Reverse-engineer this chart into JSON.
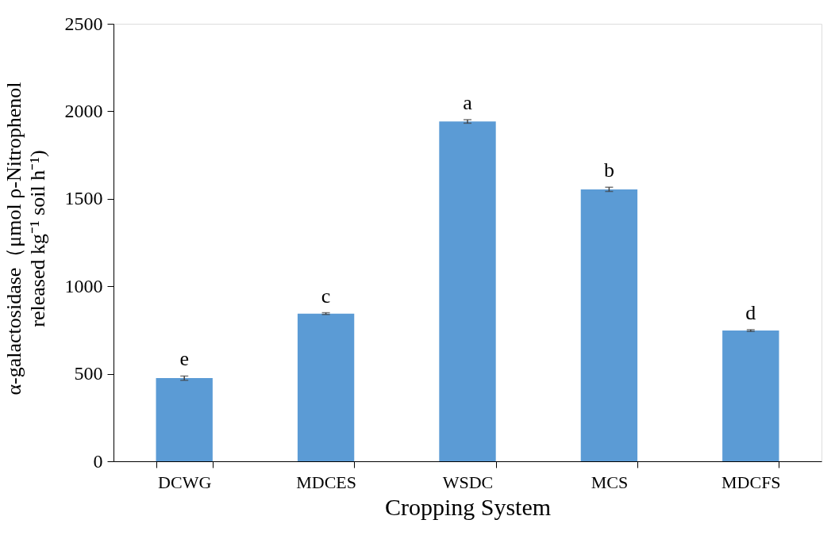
{
  "chart_data": {
    "type": "bar",
    "xlabel": "Cropping System",
    "ylabel": "α-galactosidase（μmol  ρ-Nitrophenol\nreleased kg⁻¹ soil h⁻¹)",
    "categories": [
      "DCWG",
      "MDCES",
      "WSDC",
      "MCS",
      "MDCFS"
    ],
    "values": [
      475,
      844,
      1942,
      1554,
      747
    ],
    "errors": [
      12,
      5,
      10,
      12,
      5
    ],
    "color": "#5b9bd5",
    "ylim": [
      0,
      2500
    ],
    "yticks": [
      0,
      500,
      1000,
      1500,
      2000,
      2500
    ],
    "grid": false,
    "annotations": [
      {
        "text": "e",
        "x": "DCWG",
        "y": 487
      },
      {
        "text": "c",
        "x": "MDCES",
        "y": 849
      },
      {
        "text": "a",
        "x": "WSDC",
        "y": 1952
      },
      {
        "text": "b",
        "x": "MCS",
        "y": 1566
      },
      {
        "text": "d",
        "x": "MDCFS",
        "y": 752
      }
    ]
  }
}
